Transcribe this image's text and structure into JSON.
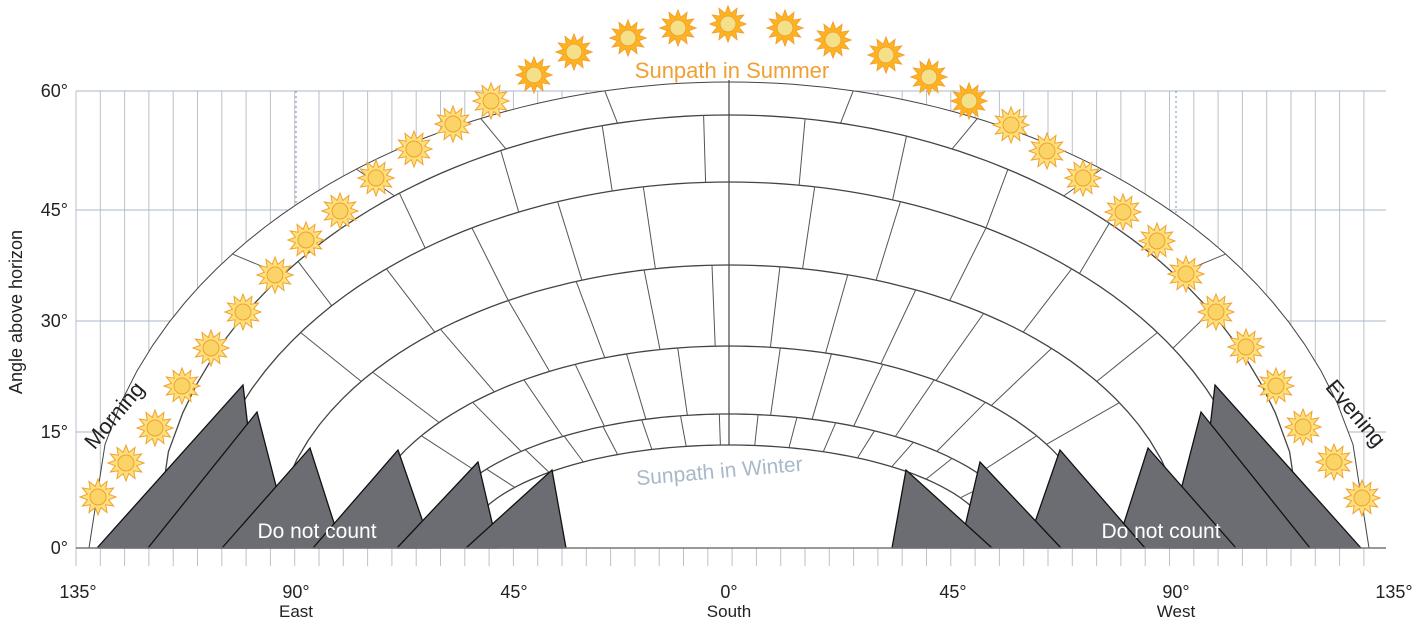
{
  "y_axis": {
    "label": "Angle above horizon",
    "ticks": [
      "0°",
      "15°",
      "30°",
      "45°",
      "60°"
    ]
  },
  "x_axis": {
    "ticks": [
      "135°",
      "90°",
      "45°",
      "0°",
      "45°",
      "90°",
      "135°"
    ],
    "sublabels": {
      "east": "East",
      "south": "South",
      "west": "West"
    }
  },
  "labels": {
    "morning": "Morning",
    "evening": "Evening",
    "summer_path": "Sunpath in Summer",
    "winter_path": "Sunpath in Winter",
    "do_not_count_left": "Do not count",
    "do_not_count_right": "Do not count"
  },
  "colors": {
    "sun_fill": "#fde07a",
    "sun_stroke": "#f0a030",
    "shade": "#6b6d73",
    "grid_vertical": "#b9c2cc",
    "grid_horizontal": "#aab7c4",
    "summer_text": "#f0a030",
    "winter_text": "#a8b8c8"
  },
  "icons": {
    "sun": "sun-icon"
  }
}
